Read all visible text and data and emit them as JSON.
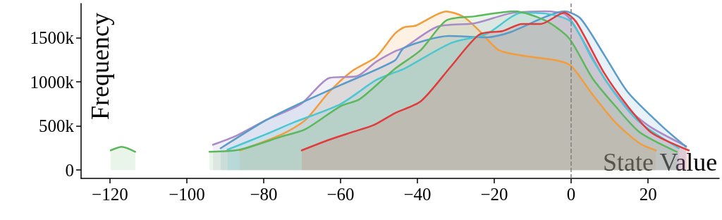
{
  "chart_data": {
    "type": "area",
    "xlabel": "State Value",
    "ylabel": "Frequency",
    "xlim": [
      -127.5,
      38.5
    ],
    "ylim": [
      -95000,
      1890000
    ],
    "xticks": [
      {
        "value": -120,
        "label": "−120"
      },
      {
        "value": -100,
        "label": "−100"
      },
      {
        "value": -80,
        "label": "−80"
      },
      {
        "value": -60,
        "label": "−60"
      },
      {
        "value": -40,
        "label": "−40"
      },
      {
        "value": -20,
        "label": "−20"
      },
      0,
      20
    ],
    "yticks": [
      0,
      {
        "value": 500000,
        "label": "500k"
      },
      {
        "value": 1000000,
        "label": "1000k"
      },
      {
        "value": 1500000,
        "label": "1500k"
      }
    ],
    "grid": false,
    "marker": "none",
    "line_style": "solid",
    "ref_lines": [
      {
        "axis": "x",
        "value": 0,
        "color": "#808080",
        "line_style": "dashed"
      }
    ],
    "series": [
      {
        "color": "#f39c3c",
        "x": [
          -86.2,
          -75.2,
          -69.2,
          -63,
          -57,
          -50.8,
          -45.9,
          -43.5,
          -40.4,
          -32.5,
          -28,
          -23.9,
          -18.9,
          -12.8,
          -3.7,
          0,
          5.5,
          11.5,
          17.8,
          22
        ],
        "values": [
          223000,
          406000,
          566000,
          885000,
          1124000,
          1283000,
          1546000,
          1620000,
          1640000,
          1800000,
          1740000,
          1580000,
          1363000,
          1300000,
          1243000,
          1180000,
          860000,
          540000,
          303000,
          223000
        ]
      },
      {
        "color": "#a98bc9",
        "x": [
          -93.2,
          -87.5,
          -79.4,
          -70.3,
          -63,
          -55.6,
          -50.8,
          -45.9,
          -43.5,
          -34.9,
          -25.1,
          -15.2,
          -6.8,
          -1.3,
          2.4,
          8.6,
          14.7,
          20.7,
          29.9
        ],
        "values": [
          287000,
          382000,
          566000,
          749000,
          1044000,
          1068000,
          1227000,
          1347000,
          1387000,
          1626000,
          1666000,
          1785000,
          1801000,
          1761000,
          1522000,
          1044000,
          701000,
          486000,
          271000
        ]
      },
      {
        "color": "#5a9bc9",
        "x": [
          -91.2,
          -79.4,
          -72.1,
          -60,
          -45.9,
          -43.5,
          -31.7,
          -22,
          -16,
          -6.8,
          -1.8,
          2.4,
          8.6,
          14.7,
          23.9,
          29.9
        ],
        "values": [
          247000,
          566000,
          725000,
          964000,
          1243000,
          1387000,
          1522000,
          1506000,
          1562000,
          1737000,
          1801000,
          1721000,
          1307000,
          885000,
          486000,
          263000
        ]
      },
      {
        "color": "#4cc6d1",
        "x": [
          -89.4,
          -79.4,
          -72.1,
          -60,
          -50.8,
          -45.9,
          -43.5,
          -31.2,
          -22,
          -12.8,
          -6.8,
          0,
          5.5,
          11.5,
          17.8,
          28
        ],
        "values": [
          231000,
          406000,
          542000,
          749000,
          1020000,
          1108000,
          1148000,
          1443000,
          1546000,
          1785000,
          1777000,
          1682000,
          1259000,
          860000,
          542000,
          247000
        ]
      },
      {
        "color": "#5db85d",
        "x": [
          -119.8,
          -116.9,
          -113.4,
          -105,
          -94.1,
          -86.2,
          -75.2,
          -69.2,
          -60,
          -55,
          -45.9,
          -39.1,
          -32.5,
          -25.1,
          -14.7,
          -6.8,
          -0.6,
          5.5,
          11.5,
          17.8,
          27.5
        ],
        "values": [
          223000,
          263000,
          207000,
          null,
          207000,
          231000,
          382000,
          462000,
          725000,
          805000,
          1148000,
          1363000,
          1698000,
          1745000,
          1801000,
          1698000,
          1498000,
          1044000,
          725000,
          430000,
          207000
        ]
      },
      {
        "color": "#e03c3c",
        "x": [
          -70.1,
          -63,
          -57,
          -51.4,
          -45.9,
          -39.1,
          -31.2,
          -23.9,
          -17.8,
          -12.8,
          -7.9,
          -1.8,
          1.3,
          8.6,
          14.7,
          20.7,
          30.6
        ],
        "values": [
          223000,
          343000,
          430000,
          510000,
          645000,
          781000,
          1180000,
          1538000,
          1578000,
          1658000,
          1658000,
          1785000,
          1682000,
          1100000,
          725000,
          430000,
          223000
        ]
      }
    ]
  }
}
